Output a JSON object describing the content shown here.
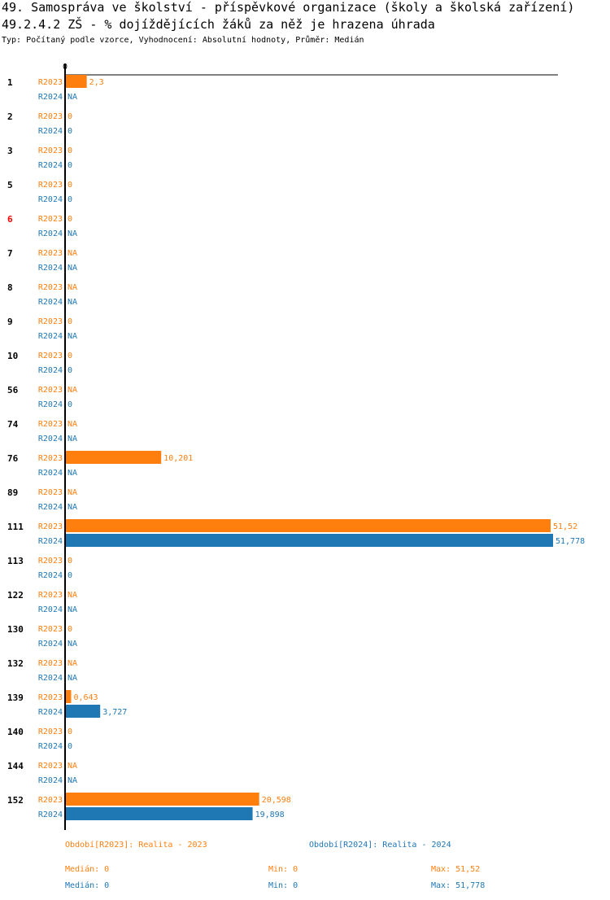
{
  "header": {
    "title_line1": "49. Samospráva ve školství - příspěvkové organizace (školy a školská zařízení)",
    "title_line2": "49.2.4.2 ZŠ - % dojíždějících žáků za něž je hrazena úhrada",
    "subtitle": "Typ: Počítaný podle vzorce, Vyhodnocení: Absolutní hodnoty, Průměr: Medián"
  },
  "colors": {
    "r2023": "#ff7f0e",
    "r2024": "#1f77b4",
    "highlight": "#ff0000"
  },
  "chart_data": {
    "type": "bar",
    "orientation": "horizontal",
    "axis_zero_label": "0",
    "xlim": [
      0,
      51.778
    ],
    "categories": [
      "1",
      "2",
      "3",
      "5",
      "6",
      "7",
      "8",
      "9",
      "10",
      "56",
      "74",
      "76",
      "89",
      "111",
      "113",
      "122",
      "130",
      "132",
      "139",
      "140",
      "144",
      "152"
    ],
    "highlighted_categories": [
      "6"
    ],
    "series": [
      {
        "name": "R2023",
        "values": [
          2.3,
          0,
          0,
          0,
          0,
          null,
          null,
          0,
          0,
          null,
          null,
          10.201,
          null,
          51.52,
          0,
          null,
          0,
          null,
          0.643,
          0,
          null,
          20.598
        ],
        "labels": [
          "2,3",
          "0",
          "0",
          "0",
          "0",
          "NA",
          "NA",
          "0",
          "0",
          "NA",
          "NA",
          "10,201",
          "NA",
          "51,52",
          "0",
          "NA",
          "0",
          "NA",
          "0,643",
          "0",
          "NA",
          "20,598"
        ]
      },
      {
        "name": "R2024",
        "values": [
          null,
          0,
          0,
          0,
          null,
          null,
          null,
          null,
          0,
          0,
          null,
          null,
          null,
          51.778,
          0,
          null,
          null,
          null,
          3.727,
          0,
          null,
          19.898
        ],
        "labels": [
          "NA",
          "0",
          "0",
          "0",
          "NA",
          "NA",
          "NA",
          "NA",
          "0",
          "0",
          "NA",
          "NA",
          "NA",
          "51,778",
          "0",
          "NA",
          "NA",
          "NA",
          "3,727",
          "0",
          "NA",
          "19,898"
        ]
      }
    ]
  },
  "legend": {
    "r2023": {
      "period": "Období[R2023]: Realita - 2023",
      "median": "Medián: 0",
      "min": "Min: 0",
      "max": "Max: 51,52"
    },
    "r2024": {
      "period": "Období[R2024]: Realita - 2024",
      "median": "Medián: 0",
      "min": "Min: 0",
      "max": "Max: 51,778"
    }
  }
}
